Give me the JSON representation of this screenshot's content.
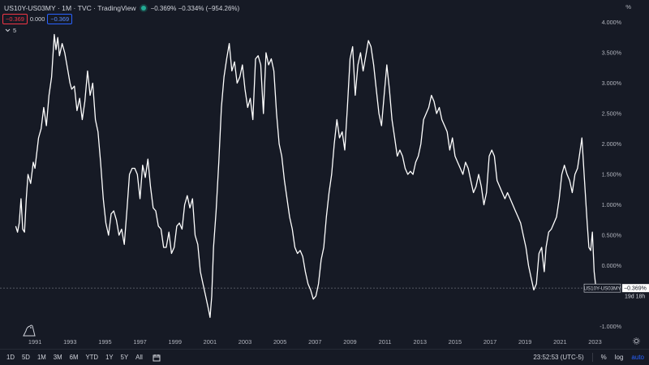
{
  "header": {
    "title": "US10Y-US03MY · 1M · TVC · TradingView",
    "quote": "−0.369%  −0.334% (−954.26%)"
  },
  "prices": {
    "sell": "−0.369",
    "spread": "0.000",
    "buy": "−0.369"
  },
  "legend": {
    "label": "5"
  },
  "scale_unit": "%",
  "toolbar": {
    "ranges": [
      "1D",
      "5D",
      "1M",
      "3M",
      "6M",
      "YTD",
      "1Y",
      "5Y",
      "All"
    ],
    "time": "23:52:53 (UTC-5)",
    "percent": "%",
    "log": "log",
    "auto": "auto"
  },
  "colors": {
    "background": "#161a25",
    "line": "#ffffff",
    "text": "#d1d4dc",
    "sell": "#f23645",
    "buy": "#2962ff",
    "live": "#22ab94"
  },
  "chart_data": {
    "type": "line",
    "series": [
      {
        "points": [
          [
            1989.9,
            0.65
          ],
          [
            1990.0,
            0.55
          ],
          [
            1990.1,
            0.7
          ],
          [
            1990.2,
            1.1
          ],
          [
            1990.3,
            0.6
          ],
          [
            1990.4,
            0.55
          ],
          [
            1990.5,
            1.1
          ],
          [
            1990.6,
            1.5
          ],
          [
            1990.75,
            1.35
          ],
          [
            1990.9,
            1.7
          ],
          [
            1991.0,
            1.6
          ],
          [
            1991.2,
            2.1
          ],
          [
            1991.35,
            2.25
          ],
          [
            1991.5,
            2.6
          ],
          [
            1991.65,
            2.3
          ],
          [
            1991.8,
            2.8
          ],
          [
            1991.95,
            3.1
          ],
          [
            1992.1,
            3.8
          ],
          [
            1992.2,
            3.55
          ],
          [
            1992.3,
            3.75
          ],
          [
            1992.4,
            3.45
          ],
          [
            1992.55,
            3.65
          ],
          [
            1992.7,
            3.5
          ],
          [
            1992.85,
            3.25
          ],
          [
            1993.0,
            3.0
          ],
          [
            1993.1,
            2.9
          ],
          [
            1993.25,
            2.95
          ],
          [
            1993.4,
            2.55
          ],
          [
            1993.55,
            2.75
          ],
          [
            1993.7,
            2.4
          ],
          [
            1993.85,
            2.7
          ],
          [
            1994.0,
            3.2
          ],
          [
            1994.15,
            2.8
          ],
          [
            1994.3,
            3.0
          ],
          [
            1994.45,
            2.4
          ],
          [
            1994.6,
            2.2
          ],
          [
            1994.75,
            1.7
          ],
          [
            1994.9,
            1.1
          ],
          [
            1995.05,
            0.7
          ],
          [
            1995.2,
            0.5
          ],
          [
            1995.35,
            0.85
          ],
          [
            1995.5,
            0.9
          ],
          [
            1995.65,
            0.75
          ],
          [
            1995.8,
            0.5
          ],
          [
            1995.95,
            0.6
          ],
          [
            1996.1,
            0.35
          ],
          [
            1996.25,
            0.9
          ],
          [
            1996.4,
            1.5
          ],
          [
            1996.55,
            1.6
          ],
          [
            1996.7,
            1.6
          ],
          [
            1996.85,
            1.5
          ],
          [
            1997.0,
            1.1
          ],
          [
            1997.15,
            1.65
          ],
          [
            1997.3,
            1.45
          ],
          [
            1997.45,
            1.75
          ],
          [
            1997.6,
            1.3
          ],
          [
            1997.75,
            0.95
          ],
          [
            1997.9,
            0.9
          ],
          [
            1998.05,
            0.65
          ],
          [
            1998.2,
            0.6
          ],
          [
            1998.35,
            0.3
          ],
          [
            1998.5,
            0.3
          ],
          [
            1998.65,
            0.55
          ],
          [
            1998.8,
            0.2
          ],
          [
            1998.95,
            0.3
          ],
          [
            1999.1,
            0.65
          ],
          [
            1999.25,
            0.7
          ],
          [
            1999.4,
            0.6
          ],
          [
            1999.55,
            1.0
          ],
          [
            1999.7,
            1.15
          ],
          [
            1999.85,
            0.95
          ],
          [
            2000.0,
            1.1
          ],
          [
            2000.15,
            0.5
          ],
          [
            2000.3,
            0.35
          ],
          [
            2000.45,
            -0.1
          ],
          [
            2000.6,
            -0.3
          ],
          [
            2000.75,
            -0.5
          ],
          [
            2000.9,
            -0.7
          ],
          [
            2001.0,
            -0.85
          ],
          [
            2001.1,
            -0.5
          ],
          [
            2001.2,
            0.3
          ],
          [
            2001.35,
            0.9
          ],
          [
            2001.5,
            1.7
          ],
          [
            2001.65,
            2.6
          ],
          [
            2001.8,
            3.1
          ],
          [
            2001.95,
            3.4
          ],
          [
            2002.1,
            3.65
          ],
          [
            2002.25,
            3.2
          ],
          [
            2002.4,
            3.35
          ],
          [
            2002.55,
            3.0
          ],
          [
            2002.7,
            3.1
          ],
          [
            2002.85,
            3.3
          ],
          [
            2003.0,
            2.9
          ],
          [
            2003.15,
            2.6
          ],
          [
            2003.3,
            2.75
          ],
          [
            2003.45,
            2.4
          ],
          [
            2003.6,
            3.4
          ],
          [
            2003.75,
            3.45
          ],
          [
            2003.9,
            3.3
          ],
          [
            2004.05,
            2.5
          ],
          [
            2004.2,
            3.5
          ],
          [
            2004.35,
            3.3
          ],
          [
            2004.5,
            3.4
          ],
          [
            2004.65,
            3.2
          ],
          [
            2004.8,
            2.5
          ],
          [
            2004.95,
            2.0
          ],
          [
            2005.1,
            1.8
          ],
          [
            2005.25,
            1.4
          ],
          [
            2005.4,
            1.1
          ],
          [
            2005.55,
            0.8
          ],
          [
            2005.7,
            0.6
          ],
          [
            2005.85,
            0.3
          ],
          [
            2006.0,
            0.2
          ],
          [
            2006.15,
            0.25
          ],
          [
            2006.3,
            0.15
          ],
          [
            2006.45,
            -0.1
          ],
          [
            2006.6,
            -0.3
          ],
          [
            2006.75,
            -0.4
          ],
          [
            2006.9,
            -0.55
          ],
          [
            2007.05,
            -0.5
          ],
          [
            2007.2,
            -0.3
          ],
          [
            2007.35,
            0.1
          ],
          [
            2007.5,
            0.3
          ],
          [
            2007.65,
            0.8
          ],
          [
            2007.8,
            1.2
          ],
          [
            2007.95,
            1.5
          ],
          [
            2008.1,
            2.0
          ],
          [
            2008.25,
            2.4
          ],
          [
            2008.4,
            2.1
          ],
          [
            2008.55,
            2.2
          ],
          [
            2008.7,
            1.9
          ],
          [
            2008.85,
            2.6
          ],
          [
            2009.0,
            3.4
          ],
          [
            2009.15,
            3.6
          ],
          [
            2009.3,
            2.8
          ],
          [
            2009.45,
            3.3
          ],
          [
            2009.6,
            3.5
          ],
          [
            2009.75,
            3.2
          ],
          [
            2009.9,
            3.45
          ],
          [
            2010.05,
            3.7
          ],
          [
            2010.2,
            3.6
          ],
          [
            2010.35,
            3.3
          ],
          [
            2010.5,
            2.9
          ],
          [
            2010.65,
            2.5
          ],
          [
            2010.8,
            2.3
          ],
          [
            2010.95,
            2.8
          ],
          [
            2011.1,
            3.3
          ],
          [
            2011.25,
            2.9
          ],
          [
            2011.4,
            2.4
          ],
          [
            2011.55,
            2.1
          ],
          [
            2011.7,
            1.8
          ],
          [
            2011.85,
            1.9
          ],
          [
            2012.0,
            1.8
          ],
          [
            2012.15,
            1.6
          ],
          [
            2012.3,
            1.5
          ],
          [
            2012.45,
            1.55
          ],
          [
            2012.6,
            1.5
          ],
          [
            2012.75,
            1.7
          ],
          [
            2012.9,
            1.8
          ],
          [
            2013.05,
            2.0
          ],
          [
            2013.2,
            2.4
          ],
          [
            2013.35,
            2.5
          ],
          [
            2013.5,
            2.6
          ],
          [
            2013.65,
            2.8
          ],
          [
            2013.8,
            2.7
          ],
          [
            2013.95,
            2.5
          ],
          [
            2014.1,
            2.6
          ],
          [
            2014.25,
            2.4
          ],
          [
            2014.4,
            2.3
          ],
          [
            2014.55,
            2.2
          ],
          [
            2014.7,
            1.9
          ],
          [
            2014.85,
            2.1
          ],
          [
            2015.0,
            1.8
          ],
          [
            2015.15,
            1.7
          ],
          [
            2015.3,
            1.6
          ],
          [
            2015.45,
            1.5
          ],
          [
            2015.6,
            1.7
          ],
          [
            2015.75,
            1.6
          ],
          [
            2015.9,
            1.4
          ],
          [
            2016.05,
            1.2
          ],
          [
            2016.2,
            1.3
          ],
          [
            2016.35,
            1.5
          ],
          [
            2016.5,
            1.3
          ],
          [
            2016.65,
            1.0
          ],
          [
            2016.8,
            1.2
          ],
          [
            2016.95,
            1.8
          ],
          [
            2017.1,
            1.9
          ],
          [
            2017.25,
            1.8
          ],
          [
            2017.4,
            1.4
          ],
          [
            2017.55,
            1.3
          ],
          [
            2017.7,
            1.2
          ],
          [
            2017.85,
            1.1
          ],
          [
            2018.0,
            1.2
          ],
          [
            2018.15,
            1.1
          ],
          [
            2018.3,
            1.0
          ],
          [
            2018.45,
            0.9
          ],
          [
            2018.6,
            0.8
          ],
          [
            2018.75,
            0.7
          ],
          [
            2018.9,
            0.5
          ],
          [
            2019.05,
            0.3
          ],
          [
            2019.2,
            0.0
          ],
          [
            2019.35,
            -0.2
          ],
          [
            2019.5,
            -0.4
          ],
          [
            2019.65,
            -0.3
          ],
          [
            2019.8,
            0.2
          ],
          [
            2019.95,
            0.3
          ],
          [
            2020.0,
            0.15
          ],
          [
            2020.1,
            -0.1
          ],
          [
            2020.2,
            0.3
          ],
          [
            2020.35,
            0.55
          ],
          [
            2020.5,
            0.6
          ],
          [
            2020.65,
            0.7
          ],
          [
            2020.8,
            0.8
          ],
          [
            2020.95,
            1.1
          ],
          [
            2021.1,
            1.5
          ],
          [
            2021.25,
            1.65
          ],
          [
            2021.4,
            1.5
          ],
          [
            2021.55,
            1.4
          ],
          [
            2021.7,
            1.2
          ],
          [
            2021.85,
            1.5
          ],
          [
            2022.0,
            1.6
          ],
          [
            2022.1,
            1.8
          ],
          [
            2022.25,
            2.1
          ],
          [
            2022.4,
            1.4
          ],
          [
            2022.55,
            0.7
          ],
          [
            2022.65,
            0.3
          ],
          [
            2022.75,
            0.25
          ],
          [
            2022.85,
            0.55
          ],
          [
            2022.95,
            -0.1
          ],
          [
            2023.05,
            -0.369
          ]
        ]
      }
    ],
    "x_ticks": [
      "1991",
      "1993",
      "1995",
      "1997",
      "1999",
      "2001",
      "2003",
      "2005",
      "2007",
      "2009",
      "2011",
      "2013",
      "2015",
      "2017",
      "2019",
      "2021",
      "2023"
    ],
    "y_ticks": [
      "4.000%",
      "3.500%",
      "3.000%",
      "2.500%",
      "2.000%",
      "1.500%",
      "1.000%",
      "0.500%",
      "0.000%",
      "-1.000%"
    ],
    "x_range": [
      1989.0,
      2024.6
    ],
    "y_range": [
      -1.1,
      4.1
    ],
    "last_value_label": "−0.369%",
    "countdown": "19d 18h",
    "price_line_label": "US10Y-US03MY",
    "grid": false
  }
}
